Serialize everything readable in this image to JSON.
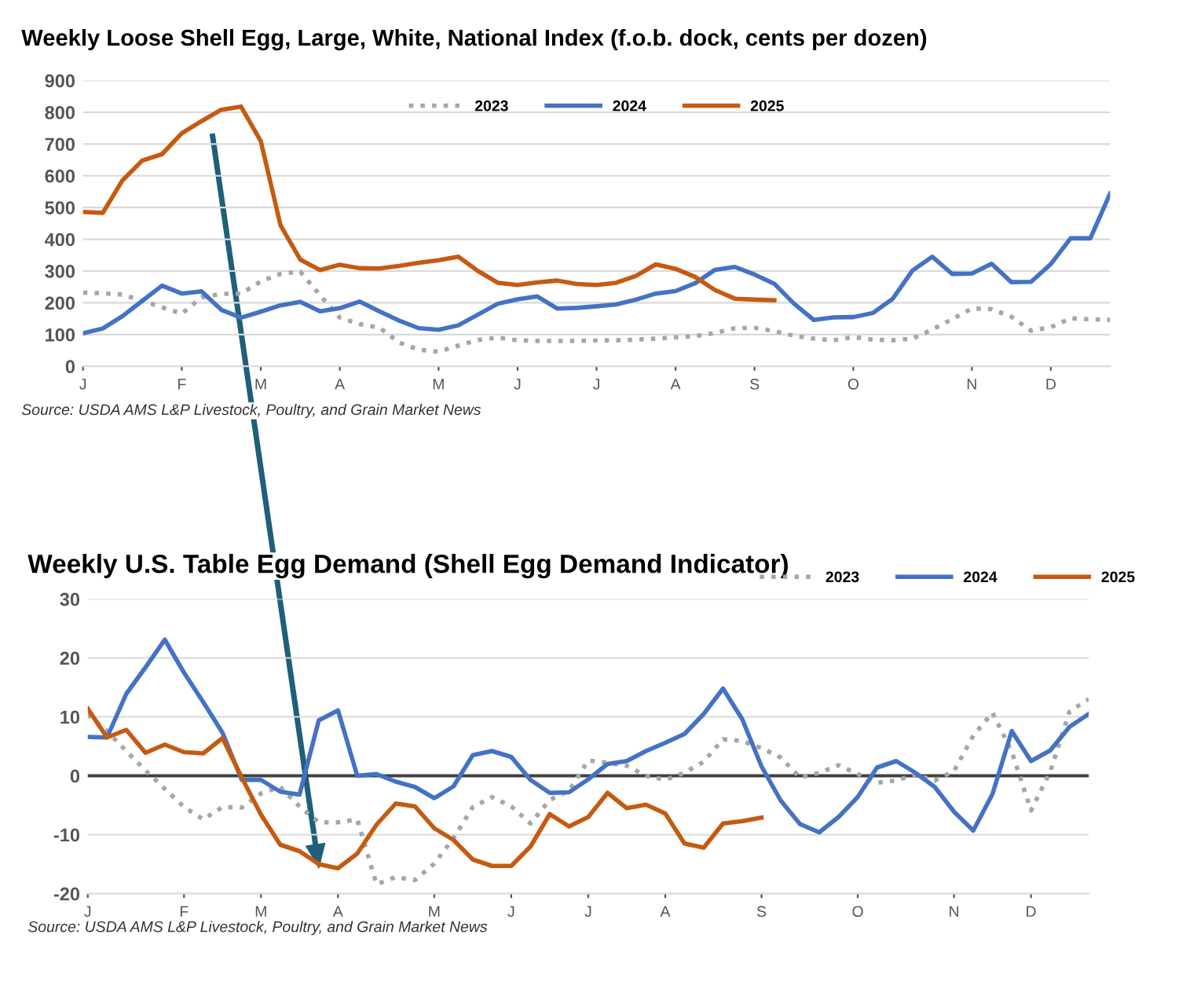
{
  "chart_data": [
    {
      "type": "line",
      "title": "Weekly Loose Shell Egg, Large, White, National Index (f.o.b. dock, cents per dozen)",
      "annotations": [
        "Source: USDA AMS L&P Livestock, Poultry, and Grain Market News"
      ],
      "ylim": [
        0,
        900
      ],
      "yticks": [
        0,
        100,
        200,
        300,
        400,
        500,
        600,
        700,
        800,
        900
      ],
      "categories": [
        "J",
        null,
        null,
        null,
        null,
        "F",
        null,
        null,
        null,
        "M",
        null,
        null,
        null,
        "A",
        null,
        null,
        null,
        null,
        "M",
        null,
        null,
        null,
        "J",
        null,
        null,
        null,
        "J",
        null,
        null,
        null,
        "A",
        null,
        null,
        null,
        "S",
        null,
        null,
        null,
        null,
        "O",
        null,
        null,
        null,
        null,
        null,
        "N",
        null,
        null,
        null,
        "D",
        null,
        null,
        null
      ],
      "grid": "y",
      "legend": "top",
      "marker": "none",
      "series": [
        {
          "name": "2023",
          "color": "#a6a6a6",
          "line_style": "dotted",
          "values": [
            232,
            230,
            226,
            206,
            186,
            166,
            217,
            228,
            229,
            267,
            291,
            298,
            224,
            153,
            133,
            122,
            75,
            52,
            46,
            65,
            83,
            90,
            82,
            80,
            80,
            80,
            81,
            82,
            84,
            87,
            91,
            95,
            105,
            120,
            121,
            111,
            96,
            87,
            82,
            92,
            84,
            82,
            87,
            116,
            148,
            182,
            180,
            156,
            112,
            123,
            151,
            148,
            146
          ]
        },
        {
          "name": "2024",
          "color": "#4472c4",
          "line_style": "solid",
          "values": [
            104,
            119,
            158,
            206,
            254,
            229,
            236,
            178,
            153,
            172,
            192,
            203,
            173,
            183,
            204,
            173,
            144,
            120,
            115,
            129,
            163,
            197,
            211,
            220,
            182,
            184,
            189,
            195,
            210,
            229,
            237,
            262,
            304,
            313,
            289,
            260,
            197,
            146,
            154,
            155,
            168,
            213,
            302,
            345,
            291,
            292,
            323,
            265,
            266,
            322,
            403,
            403,
            544
          ]
        },
        {
          "name": "2025",
          "color": "#c55a11",
          "line_style": "solid",
          "values": [
            486,
            483,
            586,
            648,
            668,
            734,
            772,
            808,
            818,
            709,
            444,
            336,
            303,
            320,
            309,
            308,
            316,
            326,
            334,
            345,
            300,
            263,
            256,
            264,
            270,
            259,
            256,
            263,
            285,
            321,
            307,
            281,
            240,
            213,
            210,
            208,
            null,
            null,
            null,
            null,
            null,
            null,
            null,
            null,
            null,
            null,
            null,
            null,
            null,
            null,
            null,
            null,
            null
          ]
        }
      ]
    },
    {
      "type": "line",
      "title": "Weekly U.S. Table Egg Demand (Shell Egg Demand Indicator)",
      "annotations": [
        "Source: USDA AMS L&P Livestock, Poultry, and Grain Market News"
      ],
      "ylim": [
        -20,
        30
      ],
      "yticks": [
        -20,
        -10,
        0,
        10,
        20,
        30
      ],
      "categories": [
        "J",
        null,
        null,
        null,
        null,
        "F",
        null,
        null,
        null,
        "M",
        null,
        null,
        null,
        "A",
        null,
        null,
        null,
        null,
        "M",
        null,
        null,
        null,
        "J",
        null,
        null,
        null,
        "J",
        null,
        null,
        null,
        "A",
        null,
        null,
        null,
        null,
        "S",
        null,
        null,
        null,
        null,
        "O",
        null,
        null,
        null,
        null,
        "N",
        null,
        null,
        null,
        "D",
        null,
        null,
        null
      ],
      "grid": "y",
      "legend": "top right",
      "marker": "none",
      "ref_lines": [
        {
          "axis": "y",
          "value": 0,
          "color": "#404040"
        }
      ],
      "series": [
        {
          "name": "2023",
          "color": "#a6a6a6",
          "line_style": "dotted",
          "values": [
            10.4,
            7.6,
            4.2,
            0.9,
            -2.2,
            -5.3,
            -7.4,
            -5.3,
            -5.4,
            -3,
            -1.9,
            -5.2,
            -7.9,
            -7.9,
            -7.4,
            -18.4,
            -17.2,
            -17.7,
            -14.9,
            -10.6,
            -5.3,
            -3.6,
            -5.2,
            -8.1,
            -4.1,
            -2.5,
            2.6,
            2.2,
            1.7,
            0,
            -0.7,
            0.5,
            2.4,
            6.2,
            5.9,
            4.7,
            3.1,
            -0.3,
            0.5,
            1.8,
            0.3,
            -1.2,
            -0.8,
            0.2,
            -0.8,
            0.8,
            6.8,
            10.7,
            4.1,
            -5.9,
            0.7,
            10.9,
            13
          ]
        },
        {
          "name": "2024",
          "color": "#4472c4",
          "line_style": "solid",
          "values": [
            6.6,
            6.5,
            13.9,
            18.4,
            23.1,
            17.5,
            12.5,
            7.3,
            -0.7,
            -0.7,
            -2.7,
            -3.2,
            9.4,
            11.1,
            0,
            0.3,
            -1,
            -1.9,
            -3.8,
            -1.8,
            3.5,
            4.2,
            3.2,
            -0.7,
            -2.9,
            -2.8,
            -0.6,
            2,
            2.5,
            4.2,
            5.6,
            7.1,
            10.5,
            14.8,
            9.6,
            1.6,
            -4.2,
            -8.2,
            -9.6,
            -7,
            -3.6,
            1.4,
            2.5,
            0.5,
            -1.9,
            -6.1,
            -9.3,
            -3.1,
            7.6,
            2.5,
            4.3,
            8.3,
            10.5
          ]
        },
        {
          "name": "2025",
          "color": "#c55a11",
          "line_style": "solid",
          "values": [
            11.4,
            6.5,
            7.8,
            3.9,
            5.3,
            4,
            3.8,
            6.4,
            -0.3,
            -6.6,
            -11.7,
            -12.8,
            -15,
            -15.7,
            -13.2,
            -8.3,
            -4.7,
            -5.2,
            -8.9,
            -10.9,
            -14.2,
            -15.3,
            -15.3,
            -12,
            -6.5,
            -8.6,
            -7,
            -2.9,
            -5.5,
            -4.9,
            -6.4,
            -11.5,
            -12.2,
            -8.1,
            -7.7,
            -7.1,
            null,
            null,
            null,
            null,
            null,
            null,
            null,
            null,
            null,
            null,
            null,
            null,
            null,
            null,
            null,
            null,
            null
          ]
        }
      ]
    }
  ]
}
